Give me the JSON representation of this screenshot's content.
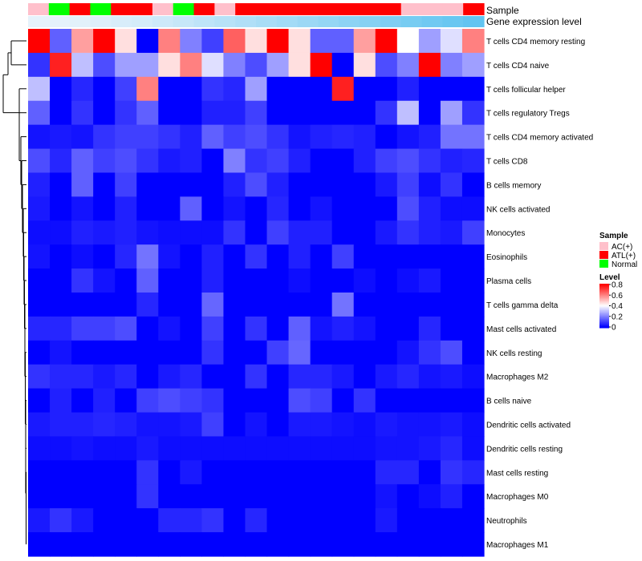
{
  "chart_data": {
    "type": "heatmap",
    "title": "",
    "annotation_labels": {
      "sample": "Sample",
      "expression": "Gene expression level"
    },
    "sample_groups": [
      "AC",
      "Normal",
      "ATL",
      "Normal",
      "ATL",
      "ATL",
      "AC",
      "Normal",
      "ATL",
      "AC",
      "ATL",
      "ATL",
      "ATL",
      "ATL",
      "ATL",
      "ATL",
      "ATL",
      "ATL",
      "AC",
      "AC",
      "AC",
      "ATL"
    ],
    "expression_level": [
      0.02,
      0.03,
      0.05,
      0.08,
      0.12,
      0.15,
      0.2,
      0.25,
      0.3,
      0.35,
      0.4,
      0.45,
      0.5,
      0.55,
      0.6,
      0.65,
      0.7,
      0.75,
      0.8,
      0.85,
      0.9,
      0.95
    ],
    "rows": [
      {
        "label": "T cells CD4 memory resting",
        "values": [
          0.8,
          0.15,
          0.55,
          0.8,
          0.45,
          0.0,
          0.6,
          0.2,
          0.1,
          0.65,
          0.45,
          0.8,
          0.45,
          0.15,
          0.15,
          0.55,
          0.8,
          0.4,
          0.25,
          0.35,
          0.6
        ]
      },
      {
        "label": "T cells CD4 naive",
        "values": [
          0.08,
          0.75,
          0.3,
          0.12,
          0.25,
          0.25,
          0.45,
          0.6,
          0.35,
          0.2,
          0.12,
          0.25,
          0.45,
          0.8,
          0.0,
          0.45,
          0.12,
          0.2,
          0.8,
          0.2,
          0.25
        ]
      },
      {
        "label": "T cells follicular helper",
        "values": [
          0.3,
          0.0,
          0.06,
          0.0,
          0.1,
          0.6,
          0.0,
          0.0,
          0.08,
          0.06,
          0.25,
          0.0,
          0.0,
          0.0,
          0.75,
          0.0,
          0.0,
          0.05,
          0.0,
          0.0,
          0.0
        ]
      },
      {
        "label": "T cells regulatory  Tregs",
        "values": [
          0.15,
          0.0,
          0.08,
          0.0,
          0.08,
          0.15,
          0.0,
          0.0,
          0.05,
          0.05,
          0.1,
          0.0,
          0.0,
          0.0,
          0.0,
          0.0,
          0.08,
          0.3,
          0.0,
          0.25,
          0.08
        ]
      },
      {
        "label": "T cells CD4 memory activated",
        "values": [
          0.03,
          0.04,
          0.03,
          0.08,
          0.1,
          0.1,
          0.08,
          0.05,
          0.15,
          0.1,
          0.12,
          0.08,
          0.03,
          0.05,
          0.06,
          0.05,
          0.0,
          0.03,
          0.05,
          0.18,
          0.18
        ]
      },
      {
        "label": "T cells CD8",
        "values": [
          0.12,
          0.06,
          0.15,
          0.1,
          0.12,
          0.08,
          0.04,
          0.05,
          0.0,
          0.2,
          0.08,
          0.1,
          0.05,
          0.0,
          0.0,
          0.05,
          0.1,
          0.12,
          0.08,
          0.05,
          0.06
        ]
      },
      {
        "label": "B cells memory",
        "values": [
          0.05,
          0.0,
          0.15,
          0.0,
          0.1,
          0.0,
          0.0,
          0.0,
          0.0,
          0.05,
          0.12,
          0.05,
          0.0,
          0.0,
          0.0,
          0.0,
          0.04,
          0.1,
          0.02,
          0.08,
          0.0
        ]
      },
      {
        "label": "NK cells activated",
        "values": [
          0.04,
          0.0,
          0.03,
          0.0,
          0.05,
          0.0,
          0.0,
          0.15,
          0.0,
          0.03,
          0.0,
          0.06,
          0.0,
          0.03,
          0.0,
          0.0,
          0.0,
          0.12,
          0.05,
          0.02,
          0.02
        ]
      },
      {
        "label": "Monocytes",
        "values": [
          0.02,
          0.02,
          0.05,
          0.04,
          0.05,
          0.03,
          0.02,
          0.02,
          0.02,
          0.08,
          0.0,
          0.1,
          0.05,
          0.05,
          0.0,
          0.0,
          0.04,
          0.08,
          0.05,
          0.04,
          0.1
        ]
      },
      {
        "label": "Eosinophils",
        "values": [
          0.03,
          0.0,
          0.02,
          0.0,
          0.06,
          0.18,
          0.03,
          0.0,
          0.05,
          0.0,
          0.08,
          0.0,
          0.05,
          0.0,
          0.1,
          0.0,
          0.0,
          0.0,
          0.0,
          0.0,
          0.0
        ]
      },
      {
        "label": "Plasma cells",
        "values": [
          0.0,
          0.0,
          0.08,
          0.03,
          0.0,
          0.15,
          0.0,
          0.0,
          0.05,
          0.0,
          0.0,
          0.0,
          0.02,
          0.0,
          0.0,
          0.02,
          0.0,
          0.02,
          0.04,
          0.0,
          0.0
        ]
      },
      {
        "label": "T cells gamma delta",
        "values": [
          0.0,
          0.0,
          0.0,
          0.0,
          0.0,
          0.06,
          0.0,
          0.0,
          0.16,
          0.0,
          0.0,
          0.0,
          0.0,
          0.0,
          0.18,
          0.0,
          0.0,
          0.0,
          0.0,
          0.0,
          0.0
        ]
      },
      {
        "label": "Mast cells activated",
        "values": [
          0.06,
          0.06,
          0.1,
          0.1,
          0.12,
          0.0,
          0.03,
          0.0,
          0.1,
          0.0,
          0.08,
          0.0,
          0.15,
          0.03,
          0.05,
          0.03,
          0.0,
          0.0,
          0.06,
          0.0,
          0.0
        ]
      },
      {
        "label": "NK cells resting",
        "values": [
          0.0,
          0.03,
          0.0,
          0.0,
          0.0,
          0.0,
          0.0,
          0.0,
          0.08,
          0.0,
          0.0,
          0.1,
          0.16,
          0.0,
          0.0,
          0.0,
          0.0,
          0.03,
          0.08,
          0.12,
          0.0
        ]
      },
      {
        "label": "Macrophages M2",
        "values": [
          0.08,
          0.06,
          0.06,
          0.04,
          0.06,
          0.0,
          0.04,
          0.06,
          0.0,
          0.0,
          0.08,
          0.0,
          0.06,
          0.06,
          0.04,
          0.0,
          0.04,
          0.06,
          0.03,
          0.04,
          0.02
        ]
      },
      {
        "label": "B cells naive",
        "values": [
          0.0,
          0.05,
          0.0,
          0.05,
          0.0,
          0.1,
          0.12,
          0.1,
          0.08,
          0.0,
          0.0,
          0.0,
          0.12,
          0.1,
          0.0,
          0.08,
          0.0,
          0.0,
          0.0,
          0.0,
          0.0
        ]
      },
      {
        "label": "Dendritic cells activated",
        "values": [
          0.04,
          0.05,
          0.05,
          0.06,
          0.05,
          0.03,
          0.03,
          0.04,
          0.1,
          0.0,
          0.03,
          0.0,
          0.04,
          0.04,
          0.03,
          0.02,
          0.04,
          0.03,
          0.03,
          0.04,
          0.02
        ]
      },
      {
        "label": "Dendritic cells resting",
        "values": [
          0.02,
          0.02,
          0.03,
          0.02,
          0.02,
          0.04,
          0.02,
          0.02,
          0.02,
          0.02,
          0.02,
          0.02,
          0.02,
          0.02,
          0.02,
          0.02,
          0.03,
          0.03,
          0.04,
          0.06,
          0.02
        ]
      },
      {
        "label": "Mast cells resting",
        "values": [
          0.0,
          0.0,
          0.0,
          0.0,
          0.0,
          0.08,
          0.0,
          0.04,
          0.0,
          0.0,
          0.0,
          0.0,
          0.0,
          0.0,
          0.0,
          0.0,
          0.06,
          0.06,
          0.0,
          0.08,
          0.06
        ]
      },
      {
        "label": "Macrophages M0",
        "values": [
          0.0,
          0.0,
          0.0,
          0.0,
          0.0,
          0.08,
          0.0,
          0.0,
          0.0,
          0.0,
          0.0,
          0.0,
          0.0,
          0.0,
          0.0,
          0.0,
          0.03,
          0.0,
          0.02,
          0.05,
          0.0
        ]
      },
      {
        "label": "Neutrophils",
        "values": [
          0.04,
          0.08,
          0.04,
          0.0,
          0.0,
          0.0,
          0.06,
          0.06,
          0.08,
          0.0,
          0.06,
          0.0,
          0.0,
          0.0,
          0.0,
          0.0,
          0.04,
          0.0,
          0.0,
          0.0,
          0.0
        ]
      },
      {
        "label": "Macrophages M1",
        "values": [
          0.0,
          0.0,
          0.0,
          0.0,
          0.0,
          0.0,
          0.0,
          0.0,
          0.0,
          0.0,
          0.0,
          0.0,
          0.0,
          0.0,
          0.0,
          0.0,
          0.0,
          0.0,
          0.0,
          0.0,
          0.0
        ]
      }
    ],
    "color_scale": {
      "min": 0,
      "max": 0.8,
      "low": "#0000ff",
      "mid": "#ffffff",
      "high": "#ff0000"
    },
    "legend": {
      "sample_title": "Sample",
      "sample_entries": [
        {
          "key": "AC",
          "label": "AC(+)",
          "color": "#ffc0cb"
        },
        {
          "key": "ATL",
          "label": "ATL(+)",
          "color": "#ff0000"
        },
        {
          "key": "Normal",
          "label": "Normal",
          "color": "#00ff00"
        }
      ],
      "level_title": "Level",
      "level_ticks": [
        "0.8",
        "0.6",
        "0.4",
        "0.2",
        "0"
      ]
    },
    "expression_colors": {
      "low": "#e9f3fb",
      "high": "#5bc2f0"
    }
  }
}
